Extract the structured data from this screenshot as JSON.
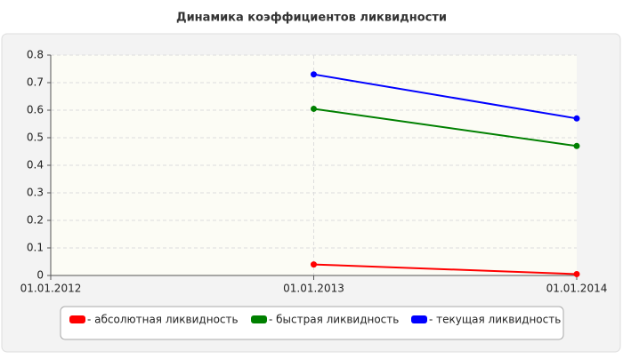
{
  "chart_data": {
    "type": "line",
    "title": "Динамика коэффициентов ликвидности",
    "categories": [
      "01.01.2012",
      "01.01.2013",
      "01.01.2014"
    ],
    "series": [
      {
        "name": "- абсолютная ликвидность",
        "color": "#ff0000",
        "values": [
          null,
          0.04,
          0.005
        ]
      },
      {
        "name": "- быстрая ликвидность",
        "color": "#008000",
        "values": [
          null,
          0.605,
          0.47
        ]
      },
      {
        "name": "- текущая ликвидность",
        "color": "#0000ff",
        "values": [
          null,
          0.73,
          0.57
        ]
      }
    ],
    "ylim": [
      0,
      0.8
    ],
    "yticks": [
      0,
      0.1,
      0.2,
      0.3,
      0.4,
      0.5,
      0.6,
      0.7,
      0.8
    ],
    "grid": true
  }
}
